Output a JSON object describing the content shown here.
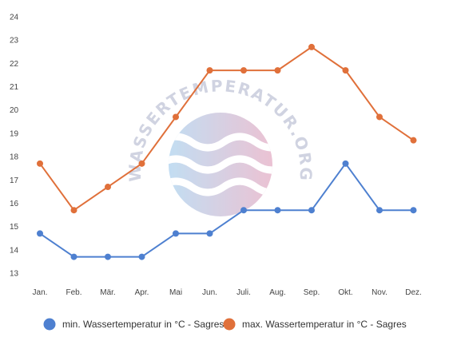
{
  "chart_data": {
    "type": "line",
    "title": "",
    "xlabel": "",
    "ylabel": "",
    "categories": [
      "Jan.",
      "Feb.",
      "Mär.",
      "Apr.",
      "Mai",
      "Jun.",
      "Juli.",
      "Aug.",
      "Sep.",
      "Okt.",
      "Nov.",
      "Dez."
    ],
    "ylim": [
      13,
      24
    ],
    "yticks": [
      "24",
      "23",
      "22",
      "21",
      "20",
      "19",
      "18",
      "17",
      "16",
      "15",
      "14",
      "13"
    ],
    "grid": false,
    "legend_position": "bottom",
    "series": [
      {
        "name": "min. Wassertemperatur in °C - Sagres",
        "color": "#4e80d0",
        "values": [
          14.7,
          13.7,
          13.7,
          13.7,
          14.7,
          14.7,
          15.7,
          15.7,
          15.7,
          17.7,
          15.7,
          15.7
        ]
      },
      {
        "name": "max. Wassertemperatur in °C - Sagres",
        "color": "#e0703a",
        "values": [
          17.7,
          15.7,
          16.7,
          17.7,
          19.7,
          21.7,
          21.7,
          21.7,
          22.7,
          21.7,
          19.7,
          18.7
        ]
      }
    ]
  },
  "watermark": {
    "text": "WASSERTEMPERATUR.ORG"
  }
}
